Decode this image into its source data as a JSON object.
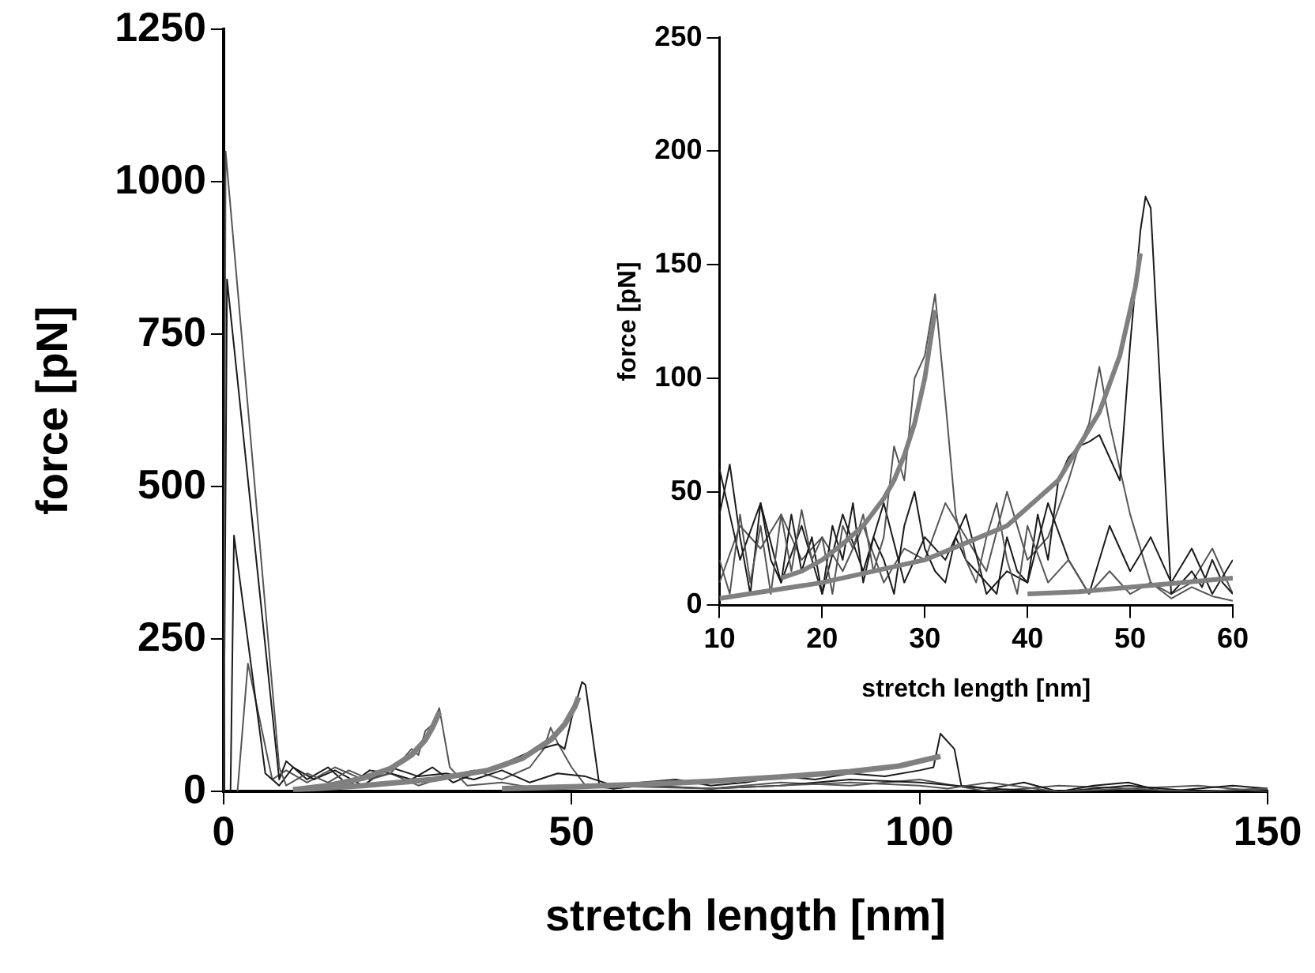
{
  "chart_data": [
    {
      "type": "line",
      "xlabel": "stretch length [nm]",
      "ylabel": "force [pN]",
      "xlim": [
        0,
        150
      ],
      "ylim": [
        0,
        1250
      ],
      "xticks": [
        0,
        50,
        100,
        150
      ],
      "yticks": [
        0,
        250,
        500,
        750,
        1000,
        1250
      ],
      "series": [
        {
          "color": "#555555",
          "x": [
            0,
            0.3,
            8,
            9,
            12,
            15,
            18,
            21,
            24,
            27,
            28,
            29,
            30,
            31,
            32.5,
            35,
            40,
            45,
            50,
            60,
            70,
            80,
            90,
            100,
            104,
            110,
            120,
            130,
            140,
            150
          ],
          "values": [
            0,
            1050,
            40,
            10,
            30,
            15,
            35,
            20,
            30,
            70,
            60,
            100,
            110,
            137,
            40,
            10,
            15,
            5,
            10,
            8,
            5,
            10,
            15,
            10,
            5,
            15,
            0,
            5,
            0,
            5
          ]
        },
        {
          "color": "#1a1a1a",
          "x": [
            0,
            0.5,
            8,
            9,
            12,
            15,
            18,
            21,
            24,
            27,
            30,
            33,
            36,
            40,
            44,
            47,
            48,
            49,
            50,
            51,
            51.5,
            52,
            54,
            56,
            60,
            70,
            80,
            90,
            100,
            110,
            120,
            130,
            140,
            150
          ],
          "values": [
            0,
            840,
            20,
            50,
            20,
            40,
            10,
            35,
            30,
            20,
            40,
            15,
            30,
            45,
            65,
            75,
            78,
            70,
            120,
            160,
            180,
            175,
            10,
            5,
            10,
            5,
            10,
            20,
            15,
            5,
            0,
            10,
            0,
            5
          ]
        },
        {
          "color": "#1a1a1a",
          "x": [
            1,
            1.5,
            6,
            8,
            10,
            13,
            16,
            20,
            24,
            28,
            32,
            36,
            40,
            44,
            48,
            52,
            56,
            60,
            65,
            70,
            75,
            80,
            85,
            90,
            95,
            100,
            102,
            103,
            105,
            106,
            110,
            115,
            120,
            125,
            130,
            135,
            140,
            145,
            150
          ],
          "values": [
            0,
            420,
            30,
            10,
            40,
            20,
            35,
            10,
            40,
            25,
            30,
            20,
            35,
            15,
            30,
            25,
            10,
            15,
            20,
            10,
            15,
            25,
            20,
            30,
            25,
            35,
            40,
            95,
            70,
            10,
            5,
            15,
            0,
            10,
            15,
            0,
            5,
            10,
            5
          ]
        },
        {
          "color": "#555555",
          "x": [
            2,
            3.5,
            7,
            9,
            12,
            16,
            20,
            24,
            28,
            32,
            36,
            40,
            44,
            46,
            47,
            48,
            50,
            52,
            56,
            60,
            70,
            80,
            90,
            100,
            110,
            120,
            130,
            140,
            150
          ],
          "values": [
            0,
            210,
            20,
            35,
            15,
            40,
            20,
            30,
            10,
            25,
            35,
            20,
            40,
            70,
            105,
            80,
            40,
            10,
            5,
            10,
            5,
            15,
            10,
            20,
            0,
            10,
            5,
            10,
            0
          ]
        },
        {
          "color": "#808080",
          "x": [
            10,
            15,
            20,
            24,
            27,
            29,
            30,
            31
          ],
          "values": [
            3,
            10,
            22,
            38,
            60,
            85,
            105,
            130
          ]
        },
        {
          "color": "#808080",
          "x": [
            10,
            20,
            30,
            38,
            43,
            47,
            49,
            50.5,
            51
          ],
          "values": [
            3,
            10,
            20,
            35,
            55,
            85,
            110,
            140,
            155
          ]
        },
        {
          "color": "#808080",
          "x": [
            40,
            50,
            60,
            70,
            80,
            90,
            97,
            103
          ],
          "values": [
            5,
            8,
            12,
            17,
            24,
            33,
            42,
            58
          ]
        }
      ]
    },
    {
      "type": "line",
      "xlabel": "stretch length [nm]",
      "ylabel": "force [pN]",
      "xlim": [
        10,
        60
      ],
      "ylim": [
        0,
        250
      ],
      "xticks": [
        10,
        20,
        30,
        40,
        50,
        60
      ],
      "yticks": [
        0,
        50,
        100,
        150,
        200,
        250
      ],
      "series": [
        {
          "color": "#555555",
          "x": [
            10,
            11,
            12,
            13,
            14,
            15,
            16,
            17,
            18,
            19,
            20,
            21,
            22,
            23,
            24,
            25,
            26,
            27,
            28,
            29,
            30,
            31,
            32,
            33,
            34,
            35,
            36,
            37,
            38,
            39,
            40,
            42,
            44,
            46,
            48,
            50,
            52,
            54,
            56,
            58,
            60
          ],
          "values": [
            20,
            5,
            40,
            10,
            35,
            5,
            40,
            15,
            42,
            20,
            30,
            5,
            35,
            25,
            40,
            15,
            30,
            70,
            55,
            100,
            110,
            137,
            90,
            40,
            20,
            10,
            30,
            45,
            20,
            5,
            35,
            10,
            20,
            5,
            15,
            5,
            10,
            3,
            8,
            4,
            2
          ]
        },
        {
          "color": "#1a1a1a",
          "x": [
            10,
            11,
            12,
            13,
            14,
            15,
            16,
            17,
            18,
            19,
            20,
            21,
            22,
            23,
            24,
            25,
            26,
            27,
            28,
            29,
            30,
            31,
            32,
            33,
            34,
            35,
            36,
            37,
            38,
            39,
            40,
            41,
            42,
            43,
            44,
            45,
            46,
            47,
            48,
            49,
            50,
            51,
            51.5,
            52,
            53,
            54,
            55,
            56,
            57,
            58,
            59,
            60
          ],
          "values": [
            40,
            62,
            30,
            5,
            45,
            20,
            10,
            40,
            15,
            30,
            5,
            35,
            20,
            45,
            10,
            30,
            20,
            5,
            35,
            50,
            25,
            15,
            10,
            30,
            20,
            15,
            10,
            5,
            30,
            15,
            10,
            40,
            20,
            55,
            65,
            70,
            72,
            75,
            65,
            55,
            115,
            165,
            180,
            175,
            90,
            5,
            10,
            15,
            8,
            20,
            10,
            5
          ]
        },
        {
          "color": "#1a1a1a",
          "x": [
            10,
            12,
            14,
            16,
            18,
            20,
            22,
            24,
            26,
            28,
            30,
            32,
            34,
            36,
            38,
            40,
            42,
            44,
            46,
            48,
            50,
            52,
            54,
            56,
            58,
            60
          ],
          "values": [
            60,
            20,
            45,
            10,
            35,
            5,
            40,
            15,
            45,
            10,
            30,
            20,
            40,
            5,
            15,
            10,
            45,
            20,
            5,
            35,
            15,
            30,
            10,
            25,
            5,
            20
          ]
        },
        {
          "color": "#555555",
          "x": [
            10,
            12,
            14,
            16,
            18,
            20,
            22,
            24,
            26,
            28,
            30,
            32,
            34,
            36,
            38,
            40,
            42,
            44,
            45,
            46,
            47,
            48,
            49,
            50,
            52,
            54,
            56,
            58,
            60
          ],
          "values": [
            10,
            35,
            25,
            40,
            20,
            30,
            15,
            35,
            10,
            25,
            20,
            45,
            30,
            15,
            50,
            20,
            30,
            55,
            70,
            80,
            105,
            80,
            60,
            40,
            10,
            5,
            10,
            25,
            5
          ]
        },
        {
          "color": "#808080",
          "x": [
            16,
            18,
            20,
            22,
            24,
            26,
            27,
            28,
            29,
            30,
            31
          ],
          "values": [
            12,
            15,
            20,
            27,
            35,
            47,
            55,
            66,
            80,
            100,
            130
          ]
        },
        {
          "color": "#808080",
          "x": [
            10,
            20,
            30,
            38,
            43,
            47,
            49,
            50.5,
            51
          ],
          "values": [
            3,
            10,
            20,
            35,
            55,
            85,
            110,
            140,
            155
          ]
        },
        {
          "color": "#808080",
          "x": [
            40,
            45,
            50,
            55,
            60
          ],
          "values": [
            5,
            6,
            8,
            10,
            12
          ]
        }
      ]
    }
  ]
}
